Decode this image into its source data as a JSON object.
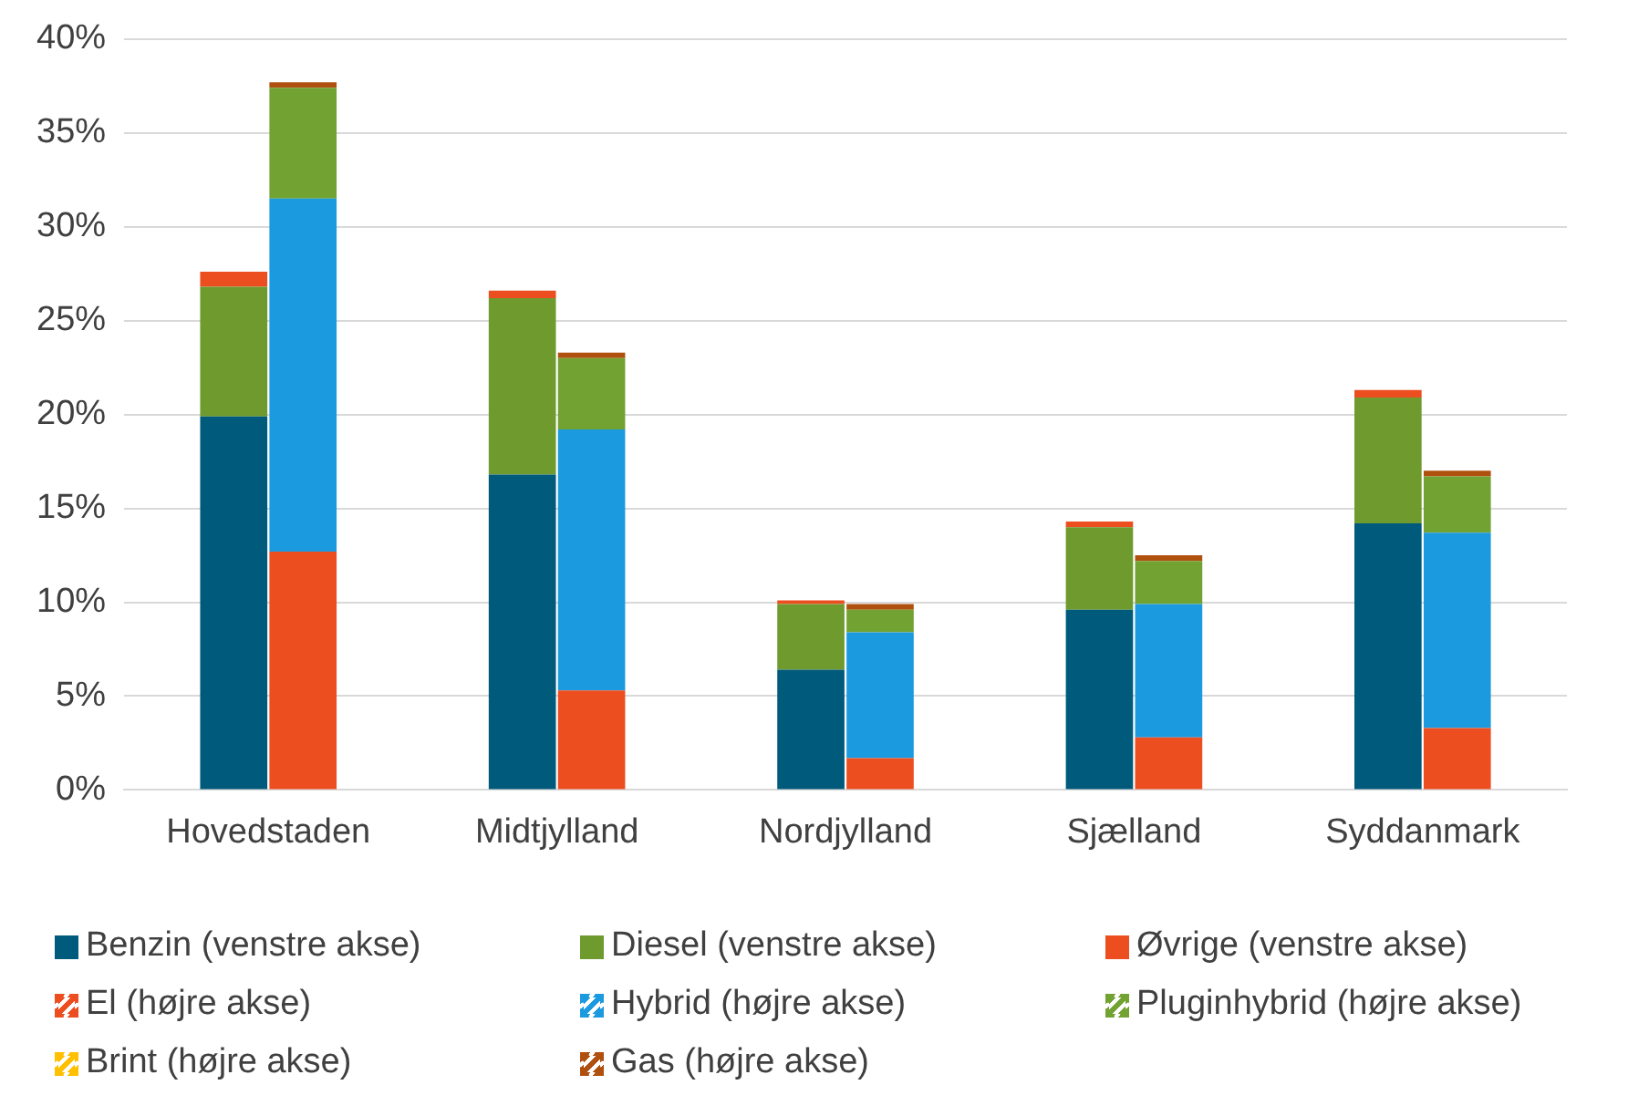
{
  "chart_data": {
    "type": "bar",
    "categories": [
      "Hovedstaden",
      "Midtjylland",
      "Nordjylland",
      "Sjælland",
      "Syddanmark"
    ],
    "ylim": [
      0,
      40
    ],
    "yticks": [
      {
        "value": 0,
        "label": "0%"
      },
      {
        "value": 5,
        "label": "5%"
      },
      {
        "value": 10,
        "label": "10%"
      },
      {
        "value": 15,
        "label": "15%"
      },
      {
        "value": 20,
        "label": "20%"
      },
      {
        "value": 25,
        "label": "25%"
      },
      {
        "value": 30,
        "label": "30%"
      },
      {
        "value": 35,
        "label": "35%"
      },
      {
        "value": 40,
        "label": "40%"
      }
    ],
    "grid": "y",
    "legend": "bottom",
    "series": [
      {
        "name": "Benzin (venstre akse)",
        "color": "#005a7b",
        "base": [
          0,
          0,
          0,
          0,
          0
        ],
        "values": [
          19.9,
          16.8,
          6.4,
          9.6,
          14.2
        ]
      },
      {
        "name": "Diesel (venstre akse)",
        "color": "#6f9a2e",
        "base": [
          19.9,
          16.8,
          6.4,
          9.6,
          14.2
        ],
        "values": [
          6.9,
          9.4,
          3.5,
          4.4,
          6.7
        ]
      },
      {
        "name": "Øvrige (venstre akse)",
        "color": "#ec4e20",
        "base": [
          26.8,
          26.2,
          9.9,
          14.0,
          20.9
        ],
        "values": [
          0.8,
          0.4,
          0.2,
          0.3,
          0.4
        ]
      },
      {
        "name": "El (højre akse)",
        "color": "#ec4e20",
        "base": [
          0,
          0,
          0,
          0,
          0
        ],
        "values": [
          12.7,
          5.3,
          1.7,
          2.8,
          3.3
        ]
      },
      {
        "name": "Hybrid (højre akse)",
        "color": "#1b9ae0",
        "base": [
          12.7,
          5.3,
          1.7,
          2.8,
          3.3
        ],
        "values": [
          18.8,
          13.9,
          6.7,
          7.1,
          10.4
        ]
      },
      {
        "name": "Pluginhybrid (højre akse)",
        "color": "#72a232",
        "base": [
          31.5,
          19.2,
          8.4,
          9.9,
          13.7
        ],
        "values": [
          5.9,
          3.8,
          1.2,
          2.3,
          3.0
        ]
      },
      {
        "name": "Brint (højre akse)",
        "color": "#ffc000",
        "values": [
          null,
          null,
          null,
          null,
          null
        ]
      },
      {
        "name": "Gas (højre akse)",
        "color": "#b0500f",
        "base": [
          37.4,
          23.0,
          9.6,
          12.2,
          16.7
        ],
        "values": [
          0.3,
          0.3,
          0.3,
          0.3,
          0.3
        ]
      }
    ]
  }
}
